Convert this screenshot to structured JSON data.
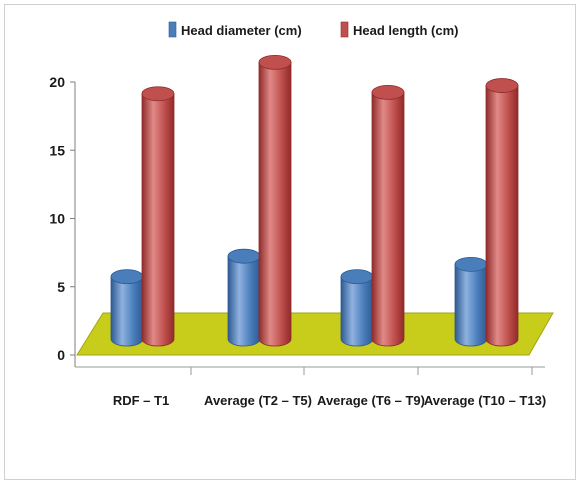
{
  "chart_data": {
    "type": "bar",
    "categories": [
      "RDF – T1",
      "Average (T2 – T5)",
      "Average (T6 – T9)",
      "Average (T10 – T13)"
    ],
    "series": [
      {
        "name": "Head diameter (cm)",
        "values": [
          5.3,
          6.8,
          5.3,
          6.2
        ]
      },
      {
        "name": "Head length (cm)",
        "values": [
          18.7,
          21.0,
          18.8,
          19.3
        ]
      }
    ],
    "colors": {
      "series": [
        "#4a7ebb",
        "#c0504d"
      ],
      "series_dark": [
        "#2e5a92",
        "#8f2b2a"
      ],
      "series_light": [
        "#8fb2e0",
        "#e08a88"
      ],
      "floor": "#c8cc1a",
      "floor_dark": "#a3a614"
    },
    "yticks": [
      0,
      5,
      10,
      15,
      20
    ],
    "ylim": [
      0,
      20
    ],
    "grid": false,
    "legend_position": "top",
    "title": "",
    "xlabel": "",
    "ylabel": "",
    "style": "3d-cylinder"
  }
}
